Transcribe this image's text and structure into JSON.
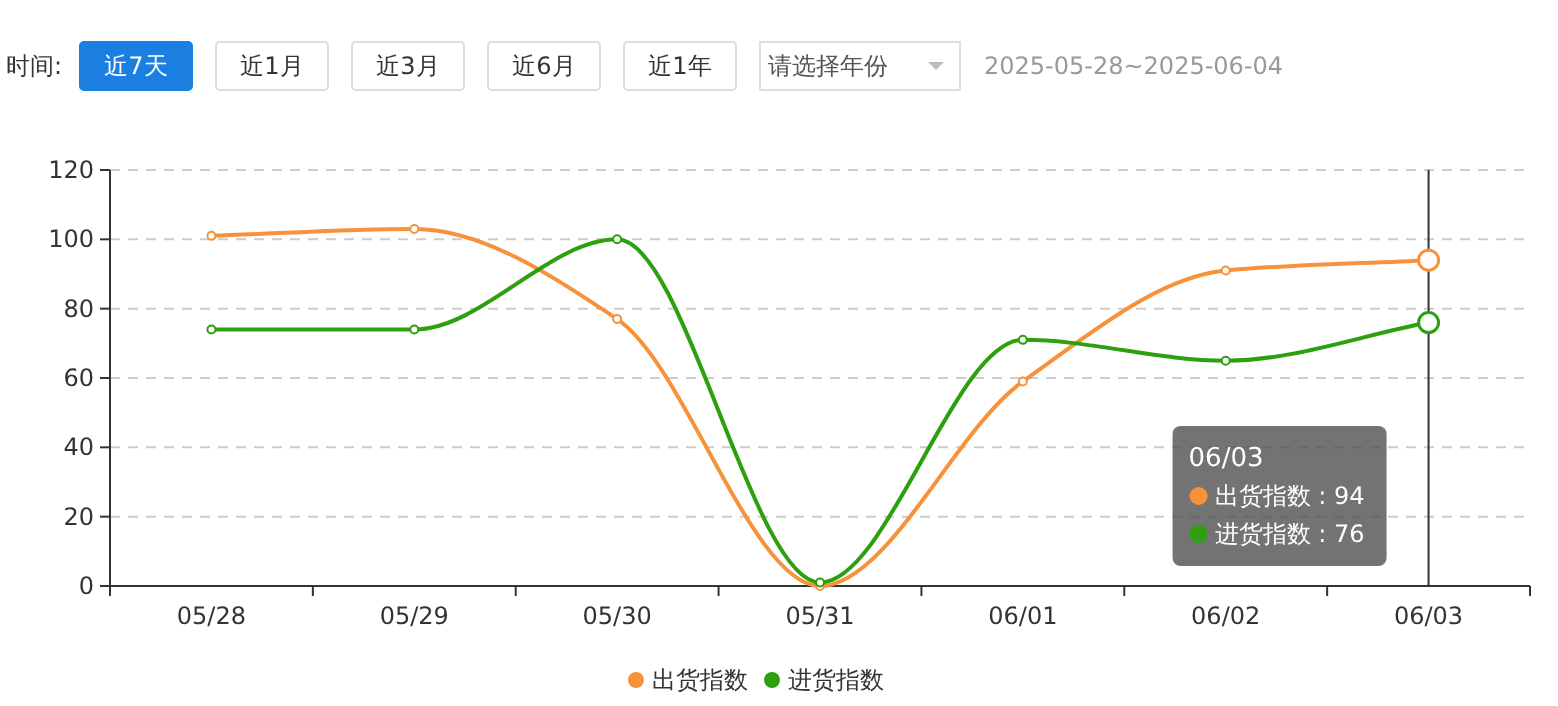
{
  "chart_data": {
    "type": "line",
    "categories": [
      "05/28",
      "05/29",
      "05/30",
      "05/31",
      "06/01",
      "06/02",
      "06/03"
    ],
    "series": [
      {
        "name": "出货指数",
        "color": "#f7923a",
        "values": [
          101,
          103,
          77,
          0,
          59,
          91,
          94
        ]
      },
      {
        "name": "进货指数",
        "color": "#2ca00f",
        "values": [
          74,
          74,
          100,
          1,
          71,
          65,
          76
        ]
      }
    ],
    "ylim": [
      0,
      120
    ],
    "yticks": [
      0,
      20,
      40,
      60,
      80,
      100,
      120
    ],
    "grid": "y",
    "legend": "bottom",
    "marker": "circle",
    "line_style": "solid",
    "ref_lines": [
      {
        "axis": "x",
        "value": "06/03",
        "color": "#333333"
      }
    ],
    "annotations": [
      "时间:",
      "近7天",
      "近1月",
      "近3月",
      "近6月",
      "近1年",
      "请选择年份",
      "2025-05-28~2025-06-04",
      "06/03",
      "出货指数 : 94",
      "进货指数 : 76"
    ]
  }
}
